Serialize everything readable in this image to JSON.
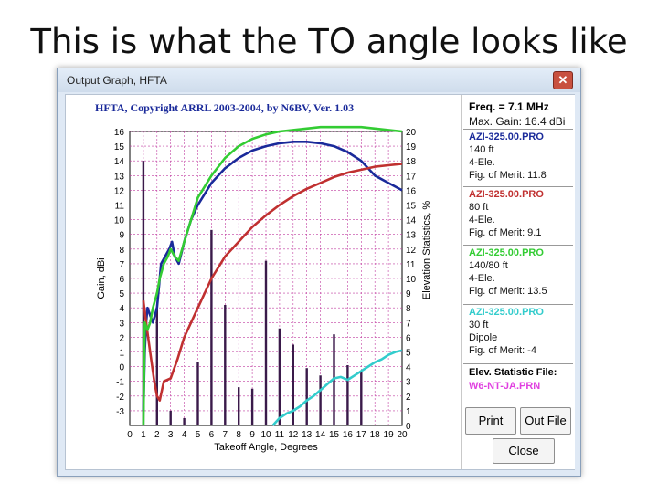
{
  "slide": {
    "title": "This is what the TO angle looks like"
  },
  "window": {
    "title": "Output Graph, HFTA",
    "close_glyph": "✕"
  },
  "chart_data": {
    "type": "line",
    "title": "HFTA, Copyright ARRL 2003-2004, by N6BV, Ver. 1.03",
    "xlabel": "Takeoff Angle, Degrees",
    "ylabel": "Gain, dBi",
    "y2label": "Elevation Statistics, %",
    "xlim": [
      0,
      20
    ],
    "ylim": [
      -4,
      16
    ],
    "y2lim": [
      0,
      20
    ],
    "x_ticks": [
      0,
      1,
      2,
      3,
      4,
      5,
      6,
      7,
      8,
      9,
      10,
      11,
      12,
      13,
      14,
      15,
      16,
      17,
      18,
      19,
      20
    ],
    "y_ticks": [
      -3,
      -2,
      -1,
      0,
      1,
      2,
      3,
      4,
      5,
      6,
      7,
      8,
      9,
      10,
      11,
      12,
      13,
      14,
      15,
      16
    ],
    "y2_ticks": [
      0,
      1,
      2,
      3,
      4,
      5,
      6,
      7,
      8,
      9,
      10,
      11,
      12,
      13,
      14,
      15,
      16,
      17,
      18,
      19,
      20
    ],
    "grid": true,
    "series": [
      {
        "name": "AZI-325.00.PRO 140 ft 4-Ele.",
        "color": "#1a2a9a",
        "x": [
          1,
          1.1,
          1.2,
          1.3,
          1.5,
          1.7,
          2,
          2.3,
          2.6,
          2.9,
          3.1,
          3.3,
          3.6,
          4,
          4.5,
          5,
          6,
          7,
          8,
          9,
          10,
          11,
          12,
          13,
          14,
          15,
          16,
          17,
          18,
          19,
          20
        ],
        "y": [
          -3,
          1,
          3,
          4,
          3.5,
          3,
          4,
          7,
          7.5,
          8,
          8.5,
          7.5,
          7,
          8.5,
          10,
          11,
          12.5,
          13.5,
          14.2,
          14.7,
          15,
          15.2,
          15.3,
          15.3,
          15.2,
          15,
          14.6,
          14,
          13,
          12.5,
          12
        ]
      },
      {
        "name": "AZI-325.00.PRO 80 ft 4-Ele.",
        "color": "#c03030",
        "x": [
          1,
          1.2,
          1.5,
          1.8,
          2,
          2.2,
          2.5,
          3,
          3.5,
          4,
          5,
          6,
          7,
          8,
          9,
          10,
          11,
          12,
          13,
          14,
          15,
          16,
          17,
          18,
          19,
          20
        ],
        "y": [
          4.5,
          3,
          1,
          -1,
          -2,
          -2.3,
          -1,
          -0.8,
          0.5,
          2,
          4,
          6,
          7.5,
          8.5,
          9.5,
          10.3,
          11,
          11.6,
          12.1,
          12.5,
          12.9,
          13.2,
          13.4,
          13.6,
          13.7,
          13.8
        ]
      },
      {
        "name": "AZI-325.00.PRO 140/80 ft 4-Ele.",
        "color": "#33cc33",
        "x": [
          1,
          1.1,
          1.3,
          1.5,
          1.7,
          2,
          2.2,
          2.5,
          2.8,
          3,
          3.3,
          3.6,
          4,
          4.5,
          5,
          6,
          7,
          8,
          9,
          10,
          11,
          12,
          13,
          14,
          15,
          16,
          17,
          18,
          19,
          20
        ],
        "y": [
          -4,
          3,
          2.5,
          3,
          4,
          5,
          6,
          7,
          7.5,
          8,
          7.5,
          7.2,
          8.5,
          10,
          11.5,
          13,
          14.2,
          15,
          15.5,
          15.8,
          16,
          16.1,
          16.2,
          16.3,
          16.3,
          16.3,
          16.3,
          16.2,
          16.1,
          16
        ]
      },
      {
        "name": "AZI-325.00.PRO 30 ft Dipole",
        "color": "#33cccc",
        "x": [
          10.5,
          11,
          11.5,
          12,
          12.5,
          13,
          13.5,
          14,
          14.5,
          15,
          15.5,
          16,
          16.5,
          17,
          17.5,
          18,
          18.5,
          19,
          19.5,
          20
        ],
        "y": [
          -4,
          -3.5,
          -3.2,
          -3,
          -2.7,
          -2.3,
          -2,
          -1.6,
          -1.2,
          -0.8,
          -0.7,
          -0.9,
          -0.6,
          -0.3,
          0,
          0.3,
          0.5,
          0.8,
          1,
          1.1
        ]
      }
    ],
    "elevation_statistics": {
      "name": "W6-NT-JA.PRN",
      "color": "#3a1a4a",
      "x": [
        1,
        2,
        3,
        4,
        5,
        6,
        7,
        8,
        9,
        10,
        11,
        12,
        13,
        14,
        15,
        16,
        17
      ],
      "values": [
        18,
        8,
        1,
        0.5,
        4.3,
        13.3,
        8.2,
        2.6,
        2.5,
        11.2,
        6.6,
        5.5,
        3.9,
        3.4,
        6.2,
        4.1,
        3.7
      ]
    }
  },
  "panel": {
    "freq": "Freq. = 7.1 MHz",
    "max_gain": "Max. Gain:  16.4 dBi",
    "entries": [
      {
        "file": "AZI-325.00.PRO",
        "color": "#1a2a9a",
        "lines": [
          "140 ft",
          "4-Ele.",
          "Fig. of Merit:  11.8"
        ]
      },
      {
        "file": "AZI-325.00.PRO",
        "color": "#c03030",
        "lines": [
          "80 ft",
          "4-Ele.",
          "Fig. of Merit:  9.1"
        ]
      },
      {
        "file": "AZI-325.00.PRO",
        "color": "#33cc33",
        "lines": [
          "140/80 ft",
          "4-Ele.",
          "Fig. of Merit:  13.5"
        ]
      },
      {
        "file": "AZI-325.00.PRO",
        "color": "#33cccc",
        "lines": [
          "30 ft",
          "Dipole",
          "Fig. of Merit:  -4"
        ]
      }
    ],
    "elev_label": "Elev. Statistic File:",
    "elev_file": "W6-NT-JA.PRN",
    "elev_color": "#e040e0",
    "print_label": "Print",
    "outfile_label": "Out File",
    "close_label": "Close"
  }
}
